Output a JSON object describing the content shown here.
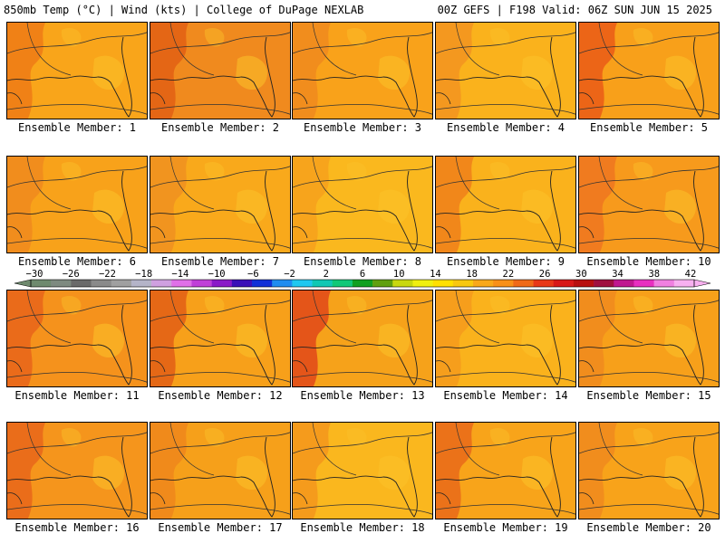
{
  "header": {
    "left": "850mb Temp (°C) | Wind (kts) | College of DuPage NEXLAB",
    "right": "00Z GEFS | F198 Valid: 06Z SUN JUN 15 2025"
  },
  "caption_prefix": "Ensemble Member:",
  "members": [
    {
      "number": "1",
      "tone": "#F9A51A",
      "hot": "#EE7A16"
    },
    {
      "number": "2",
      "tone": "#F08A1E",
      "hot": "#E25F14"
    },
    {
      "number": "3",
      "tone": "#F9A21A",
      "hot": "#F08A1E"
    },
    {
      "number": "4",
      "tone": "#FAB21C",
      "hot": "#F29320"
    },
    {
      "number": "5",
      "tone": "#F8A01A",
      "hot": "#EA5A18"
    },
    {
      "number": "6",
      "tone": "#F8A21A",
      "hot": "#F08A1E"
    },
    {
      "number": "7",
      "tone": "#F9A91B",
      "hot": "#F09020"
    },
    {
      "number": "8",
      "tone": "#FAB81E",
      "hot": "#F6A01C"
    },
    {
      "number": "9",
      "tone": "#FAB21C",
      "hot": "#EF7F1A"
    },
    {
      "number": "10",
      "tone": "#F79A1C",
      "hot": "#EE7620"
    },
    {
      "number": "11",
      "tone": "#F5921C",
      "hot": "#E8641A"
    },
    {
      "number": "12",
      "tone": "#F7A01A",
      "hot": "#E25E16"
    },
    {
      "number": "13",
      "tone": "#F6A21A",
      "hot": "#E0481A"
    },
    {
      "number": "14",
      "tone": "#FAB21C",
      "hot": "#F49A1C"
    },
    {
      "number": "15",
      "tone": "#F7A01A",
      "hot": "#F08A1E"
    },
    {
      "number": "16",
      "tone": "#F5951C",
      "hot": "#E8661A"
    },
    {
      "number": "17",
      "tone": "#F6A01A",
      "hot": "#EF861C"
    },
    {
      "number": "18",
      "tone": "#FAB71E",
      "hot": "#F3961C"
    },
    {
      "number": "19",
      "tone": "#F8A41A",
      "hot": "#E96A1A"
    },
    {
      "number": "20",
      "tone": "#F8A31A",
      "hot": "#F08A1E"
    }
  ],
  "colorbar": {
    "labels": [
      "-30",
      "-26",
      "-22",
      "-18",
      "-14",
      "-10",
      "-6",
      "-2",
      "2",
      "6",
      "10",
      "14",
      "18",
      "22",
      "26",
      "30",
      "34",
      "38",
      "42"
    ],
    "colors": [
      "#6E8A6E",
      "#7E8A80",
      "#6A6A6A",
      "#8A8A8A",
      "#A0A0A0",
      "#B4B4C8",
      "#CFA0E0",
      "#E070E8",
      "#C040D8",
      "#8A1AC8",
      "#3A10B8",
      "#1030D8",
      "#1E8CF0",
      "#1EC8F0",
      "#10C8B4",
      "#10C878",
      "#10A020",
      "#60A010",
      "#C8D810",
      "#F0F010",
      "#FFE000",
      "#F8C810",
      "#F8A81A",
      "#F89018",
      "#F06A18",
      "#E83818",
      "#D81818",
      "#B81010",
      "#A01040",
      "#C01890",
      "#E830C0",
      "#F080E0",
      "#F8B0F0"
    ]
  }
}
